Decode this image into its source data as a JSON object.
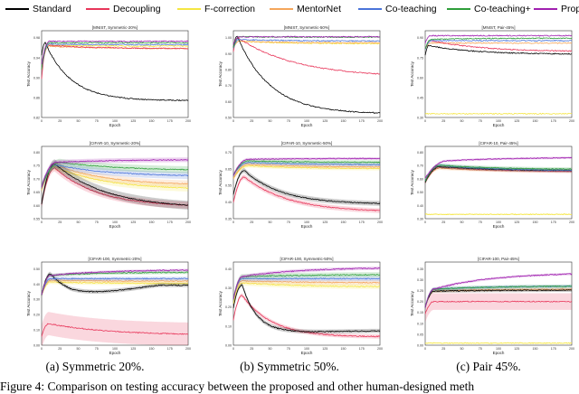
{
  "legend": [
    {
      "name": "Standard",
      "color": "#000000"
    },
    {
      "name": "Decoupling",
      "color": "#e8365a"
    },
    {
      "name": "F-correction",
      "color": "#f5e642"
    },
    {
      "name": "MentorNet",
      "color": "#f5a65b"
    },
    {
      "name": "Co-teaching",
      "color": "#4a74d9"
    },
    {
      "name": "Co-teaching+",
      "color": "#2e9e3a"
    },
    {
      "name": "Proposed",
      "color": "#a020b0"
    }
  ],
  "captions": [
    "(a) Symmetric 20%.",
    "(b) Symmetric 50%.",
    "(c) Pair 45%."
  ],
  "figure_caption": "Figure 4: Comparison on testing accuracy between the proposed and other human-designed meth",
  "chart_data": [
    {
      "type": "line",
      "title": "[MNIST, Symmetric-20%]",
      "xlabel": "Epoch",
      "ylabel": "Test Accuracy",
      "ylim": [
        0.82,
        1.0
      ],
      "yticks": [
        "0.82",
        "0.86",
        "0.90",
        "0.94",
        "0.98"
      ],
      "xlim": [
        0,
        200
      ],
      "xticks": [
        "0",
        "25",
        "50",
        "75",
        "100",
        "125",
        "150",
        "175",
        "200"
      ],
      "series": [
        {
          "name": "Standard",
          "start": 0.95,
          "peak": 0.975,
          "peakx": 5,
          "end": 0.855,
          "tau": 35
        },
        {
          "name": "Decoupling",
          "start": 0.9,
          "peak": 0.97,
          "peakx": 8,
          "end": 0.963,
          "tau": 60
        },
        {
          "name": "F-correction",
          "start": 0.92,
          "peak": 0.97,
          "peakx": 8,
          "end": 0.968,
          "tau": 60
        },
        {
          "name": "MentorNet",
          "start": 0.92,
          "peak": 0.968,
          "peakx": 10,
          "end": 0.963,
          "tau": 60
        },
        {
          "name": "Co-teaching",
          "start": 0.92,
          "peak": 0.972,
          "peakx": 10,
          "end": 0.971,
          "tau": 60
        },
        {
          "name": "Co-teaching+",
          "start": 0.92,
          "peak": 0.975,
          "peakx": 10,
          "end": 0.975,
          "tau": 60
        },
        {
          "name": "Proposed",
          "start": 0.93,
          "peak": 0.978,
          "peakx": 10,
          "end": 0.978,
          "tau": 60
        }
      ]
    },
    {
      "type": "line",
      "title": "[MNIST, Symmetric-50%]",
      "xlabel": "Epoch",
      "ylabel": "Test Accuracy",
      "ylim": [
        0.5,
        1.0
      ],
      "yticks": [
        "0.50",
        "0.60",
        "0.70",
        "0.80",
        "0.90",
        "1.00"
      ],
      "xlim": [
        0,
        200
      ],
      "xticks": [
        "0",
        "25",
        "50",
        "75",
        "100",
        "125",
        "150",
        "175",
        "200"
      ],
      "series": [
        {
          "name": "Standard",
          "start": 0.9,
          "peak": 0.97,
          "peakx": 5,
          "end": 0.52,
          "tau": 45
        },
        {
          "name": "Decoupling",
          "start": 0.88,
          "peak": 0.96,
          "peakx": 6,
          "end": 0.73,
          "tau": 80
        },
        {
          "name": "F-correction",
          "start": 0.9,
          "peak": 0.94,
          "peakx": 8,
          "end": 0.925,
          "tau": 60
        },
        {
          "name": "MentorNet",
          "start": 0.9,
          "peak": 0.94,
          "peakx": 8,
          "end": 0.93,
          "tau": 60
        },
        {
          "name": "Co-teaching",
          "start": 0.9,
          "peak": 0.95,
          "peakx": 8,
          "end": 0.94,
          "tau": 60
        },
        {
          "name": "Co-teaching+",
          "start": 0.9,
          "peak": 0.965,
          "peakx": 8,
          "end": 0.963,
          "tau": 60
        },
        {
          "name": "Proposed",
          "start": 0.92,
          "peak": 0.965,
          "peakx": 8,
          "end": 0.965,
          "tau": 60
        }
      ]
    },
    {
      "type": "line",
      "title": "[MNIST, Pair-45%]",
      "xlabel": "Epoch",
      "ylabel": "Test Accuracy",
      "ylim": [
        0.3,
        1.0
      ],
      "yticks": [
        "0.30",
        "0.45",
        "0.60",
        "0.75",
        "0.90"
      ],
      "xlim": [
        0,
        200
      ],
      "xticks": [
        "0",
        "25",
        "50",
        "75",
        "100",
        "125",
        "150",
        "175",
        "200"
      ],
      "series": [
        {
          "name": "Standard",
          "start": 0.8,
          "peak": 0.88,
          "peakx": 5,
          "end": 0.81,
          "tau": 60
        },
        {
          "name": "Decoupling",
          "start": 0.85,
          "peak": 0.92,
          "peakx": 8,
          "end": 0.83,
          "tau": 70
        },
        {
          "name": "F-correction",
          "start": 0.33,
          "peak": 0.33,
          "peakx": 5,
          "end": 0.33,
          "tau": 60
        },
        {
          "name": "MentorNet",
          "start": 0.85,
          "peak": 0.9,
          "peakx": 8,
          "end": 0.9,
          "tau": 60
        },
        {
          "name": "Co-teaching",
          "start": 0.85,
          "peak": 0.92,
          "peakx": 8,
          "end": 0.92,
          "tau": 60
        },
        {
          "name": "Co-teaching+",
          "start": 0.85,
          "peak": 0.93,
          "peakx": 8,
          "end": 0.94,
          "tau": 60
        },
        {
          "name": "Proposed",
          "start": 0.9,
          "peak": 0.96,
          "peakx": 8,
          "end": 0.96,
          "tau": 60
        }
      ]
    },
    {
      "type": "line",
      "title": "[CIFAR-10, Symmetric-20%]",
      "xlabel": "Epoch",
      "ylabel": "Test Accuracy",
      "ylim": [
        0.55,
        0.8
      ],
      "yticks": [
        "0.55",
        "0.60",
        "0.65",
        "0.70",
        "0.75",
        "0.80"
      ],
      "xlim": [
        0,
        200
      ],
      "xticks": [
        "0",
        "25",
        "50",
        "75",
        "100",
        "125",
        "150",
        "175",
        "200"
      ],
      "series": [
        {
          "name": "Standard",
          "start": 0.6,
          "peak": 0.74,
          "peakx": 18,
          "end": 0.585,
          "tau": 70,
          "band": 0.015
        },
        {
          "name": "Decoupling",
          "start": 0.6,
          "peak": 0.725,
          "peakx": 18,
          "end": 0.59,
          "tau": 60,
          "band": 0.012
        },
        {
          "name": "F-correction",
          "start": 0.65,
          "peak": 0.73,
          "peakx": 18,
          "end": 0.65,
          "tau": 70,
          "band": 0.012
        },
        {
          "name": "MentorNet",
          "start": 0.65,
          "peak": 0.735,
          "peakx": 20,
          "end": 0.665,
          "tau": 70,
          "band": 0.012
        },
        {
          "name": "Co-teaching",
          "start": 0.66,
          "peak": 0.735,
          "peakx": 20,
          "end": 0.695,
          "tau": 80,
          "band": 0.012
        },
        {
          "name": "Co-teaching+",
          "start": 0.66,
          "peak": 0.745,
          "peakx": 25,
          "end": 0.715,
          "tau": 90,
          "band": 0.012
        },
        {
          "name": "Proposed",
          "start": 0.66,
          "peak": 0.745,
          "peakx": 20,
          "end": 0.755,
          "tau": 90,
          "band": 0.008
        }
      ]
    },
    {
      "type": "line",
      "title": "[CIFAR-10, Symmetric-50%]",
      "xlabel": "Epoch",
      "ylabel": "Test Accuracy",
      "ylim": [
        0.35,
        0.8
      ],
      "yticks": [
        "0.35",
        "0.45",
        "0.55",
        "0.65",
        "0.75"
      ],
      "xlim": [
        0,
        200
      ],
      "xticks": [
        "0",
        "25",
        "50",
        "75",
        "100",
        "125",
        "150",
        "175",
        "200"
      ],
      "series": [
        {
          "name": "Standard",
          "start": 0.5,
          "peak": 0.65,
          "peakx": 15,
          "end": 0.44,
          "tau": 50,
          "band": 0.015
        },
        {
          "name": "Decoupling",
          "start": 0.45,
          "peak": 0.61,
          "peakx": 15,
          "end": 0.39,
          "tau": 60,
          "band": 0.015
        },
        {
          "name": "F-correction",
          "start": 0.6,
          "peak": 0.68,
          "peakx": 20,
          "end": 0.66,
          "tau": 80,
          "band": 0.012
        },
        {
          "name": "MentorNet",
          "start": 0.6,
          "peak": 0.69,
          "peakx": 20,
          "end": 0.67,
          "tau": 80,
          "band": 0.012
        },
        {
          "name": "Co-teaching",
          "start": 0.62,
          "peak": 0.7,
          "peakx": 20,
          "end": 0.685,
          "tau": 80,
          "band": 0.012
        },
        {
          "name": "Co-teaching+",
          "start": 0.62,
          "peak": 0.71,
          "peakx": 20,
          "end": 0.7,
          "tau": 80,
          "band": 0.012
        },
        {
          "name": "Proposed",
          "start": 0.62,
          "peak": 0.72,
          "peakx": 20,
          "end": 0.725,
          "tau": 80,
          "band": 0.008
        }
      ]
    },
    {
      "type": "line",
      "title": "[CIFAR-10, Pair-45%]",
      "xlabel": "Epoch",
      "ylabel": "Test Accuracy",
      "ylim": [
        0.3,
        0.8
      ],
      "yticks": [
        "0.30",
        "0.40",
        "0.50",
        "0.60",
        "0.70",
        "0.80"
      ],
      "xlim": [
        0,
        200
      ],
      "xticks": [
        "0",
        "25",
        "50",
        "75",
        "100",
        "125",
        "150",
        "175",
        "200"
      ],
      "series": [
        {
          "name": "Standard",
          "start": 0.55,
          "peak": 0.66,
          "peakx": 20,
          "end": 0.63,
          "tau": 80,
          "band": 0.012
        },
        {
          "name": "Decoupling",
          "start": 0.55,
          "peak": 0.66,
          "peakx": 20,
          "end": 0.625,
          "tau": 80,
          "band": 0.012
        },
        {
          "name": "F-correction",
          "start": 0.33,
          "peak": 0.33,
          "peakx": 10,
          "end": 0.33,
          "tau": 80,
          "band": 0.005
        },
        {
          "name": "MentorNet",
          "start": 0.55,
          "peak": 0.65,
          "peakx": 20,
          "end": 0.625,
          "tau": 80,
          "band": 0.012
        },
        {
          "name": "Co-teaching",
          "start": 0.56,
          "peak": 0.67,
          "peakx": 20,
          "end": 0.63,
          "tau": 80,
          "band": 0.012
        },
        {
          "name": "Co-teaching+",
          "start": 0.56,
          "peak": 0.67,
          "peakx": 20,
          "end": 0.64,
          "tau": 80,
          "band": 0.012
        },
        {
          "name": "Proposed",
          "start": 0.58,
          "peak": 0.7,
          "peakx": 30,
          "end": 0.725,
          "tau": 90,
          "band": 0.008
        }
      ]
    },
    {
      "type": "line",
      "title": "[CIFAR-100, Symmetric-20%]",
      "xlabel": "Epoch",
      "ylabel": "Test Accuracy",
      "ylim": [
        0.0,
        0.5
      ],
      "yticks": [
        "0.00",
        "0.10",
        "0.20",
        "0.30",
        "0.40",
        "0.50"
      ],
      "xlim": [
        0,
        200
      ],
      "xticks": [
        "0",
        "25",
        "50",
        "75",
        "100",
        "125",
        "150",
        "175",
        "200"
      ],
      "series": [
        {
          "name": "Standard",
          "start": 0.3,
          "peak": 0.43,
          "peakx": 12,
          "end": 0.28,
          "tau": 30,
          "rise": 0.23,
          "riset": 120,
          "band": 0.012
        },
        {
          "name": "Decoupling",
          "start": 0.05,
          "peak": 0.13,
          "peakx": 10,
          "end": 0.06,
          "tau": 80,
          "band": 0.07
        },
        {
          "name": "F-correction",
          "start": 0.3,
          "peak": 0.38,
          "peakx": 12,
          "end": 0.37,
          "tau": 80,
          "band": 0.012
        },
        {
          "name": "MentorNet",
          "start": 0.3,
          "peak": 0.39,
          "peakx": 12,
          "end": 0.385,
          "tau": 80,
          "band": 0.012
        },
        {
          "name": "Co-teaching",
          "start": 0.3,
          "peak": 0.4,
          "peakx": 12,
          "end": 0.4,
          "tau": 80,
          "band": 0.012
        },
        {
          "name": "Co-teaching+",
          "start": 0.3,
          "peak": 0.42,
          "peakx": 12,
          "end": 0.44,
          "tau": 80,
          "band": 0.01
        },
        {
          "name": "Proposed",
          "start": 0.3,
          "peak": 0.42,
          "peakx": 12,
          "end": 0.455,
          "tau": 80,
          "band": 0.008
        }
      ]
    },
    {
      "type": "line",
      "title": "[CIFAR-100, Symmetric-50%]",
      "xlabel": "Epoch",
      "ylabel": "Test Accuracy",
      "ylim": [
        0.0,
        0.4
      ],
      "yticks": [
        "0.00",
        "0.10",
        "0.20",
        "0.30",
        "0.40"
      ],
      "xlim": [
        0,
        200
      ],
      "xticks": [
        "0",
        "25",
        "50",
        "75",
        "100",
        "125",
        "150",
        "175",
        "200"
      ],
      "series": [
        {
          "name": "Standard",
          "start": 0.18,
          "peak": 0.29,
          "peakx": 12,
          "end": 0.06,
          "tau": 20,
          "rise": 0.025,
          "riset": 150,
          "band": 0.01
        },
        {
          "name": "Decoupling",
          "start": 0.12,
          "peak": 0.24,
          "peakx": 12,
          "end": 0.04,
          "tau": 40,
          "band": 0.01
        },
        {
          "name": "F-correction",
          "start": 0.2,
          "peak": 0.3,
          "peakx": 12,
          "end": 0.28,
          "tau": 80,
          "band": 0.012
        },
        {
          "name": "MentorNet",
          "start": 0.22,
          "peak": 0.31,
          "peakx": 12,
          "end": 0.3,
          "tau": 80,
          "band": 0.012
        },
        {
          "name": "Co-teaching",
          "start": 0.22,
          "peak": 0.32,
          "peakx": 12,
          "end": 0.32,
          "tau": 80,
          "band": 0.012
        },
        {
          "name": "Co-teaching+",
          "start": 0.22,
          "peak": 0.33,
          "peakx": 12,
          "end": 0.34,
          "tau": 80,
          "band": 0.012
        },
        {
          "name": "Proposed",
          "start": 0.22,
          "peak": 0.33,
          "peakx": 12,
          "end": 0.375,
          "tau": 80,
          "band": 0.008
        }
      ]
    },
    {
      "type": "line",
      "title": "[CIFAR-100, Pair-45%]",
      "xlabel": "Epoch",
      "ylabel": "Test Accuracy",
      "ylim": [
        0.0,
        0.4
      ],
      "yticks": [
        "0.00",
        "0.05",
        "0.10",
        "0.15",
        "0.20",
        "0.25",
        "0.30",
        "0.35"
      ],
      "xlim": [
        0,
        200
      ],
      "xticks": [
        "0",
        "25",
        "50",
        "75",
        "100",
        "125",
        "150",
        "175",
        "200"
      ],
      "series": [
        {
          "name": "Standard",
          "start": 0.18,
          "peak": 0.26,
          "peakx": 12,
          "end": 0.265,
          "tau": 80,
          "band": 0.008
        },
        {
          "name": "Decoupling",
          "start": 0.15,
          "peak": 0.21,
          "peakx": 12,
          "end": 0.21,
          "tau": 80,
          "band": 0.04
        },
        {
          "name": "F-correction",
          "start": 0.01,
          "peak": 0.01,
          "peakx": 10,
          "end": 0.01,
          "tau": 80,
          "band": 0.003
        },
        {
          "name": "MentorNet",
          "start": 0.18,
          "peak": 0.26,
          "peakx": 12,
          "end": 0.27,
          "tau": 80,
          "band": 0.008
        },
        {
          "name": "Co-teaching",
          "start": 0.18,
          "peak": 0.27,
          "peakx": 12,
          "end": 0.285,
          "tau": 80,
          "band": 0.008
        },
        {
          "name": "Co-teaching+",
          "start": 0.18,
          "peak": 0.27,
          "peakx": 12,
          "end": 0.285,
          "tau": 80,
          "band": 0.008
        },
        {
          "name": "Proposed",
          "start": 0.18,
          "peak": 0.27,
          "peakx": 12,
          "end": 0.35,
          "tau": 80,
          "band": 0.006
        }
      ]
    }
  ]
}
